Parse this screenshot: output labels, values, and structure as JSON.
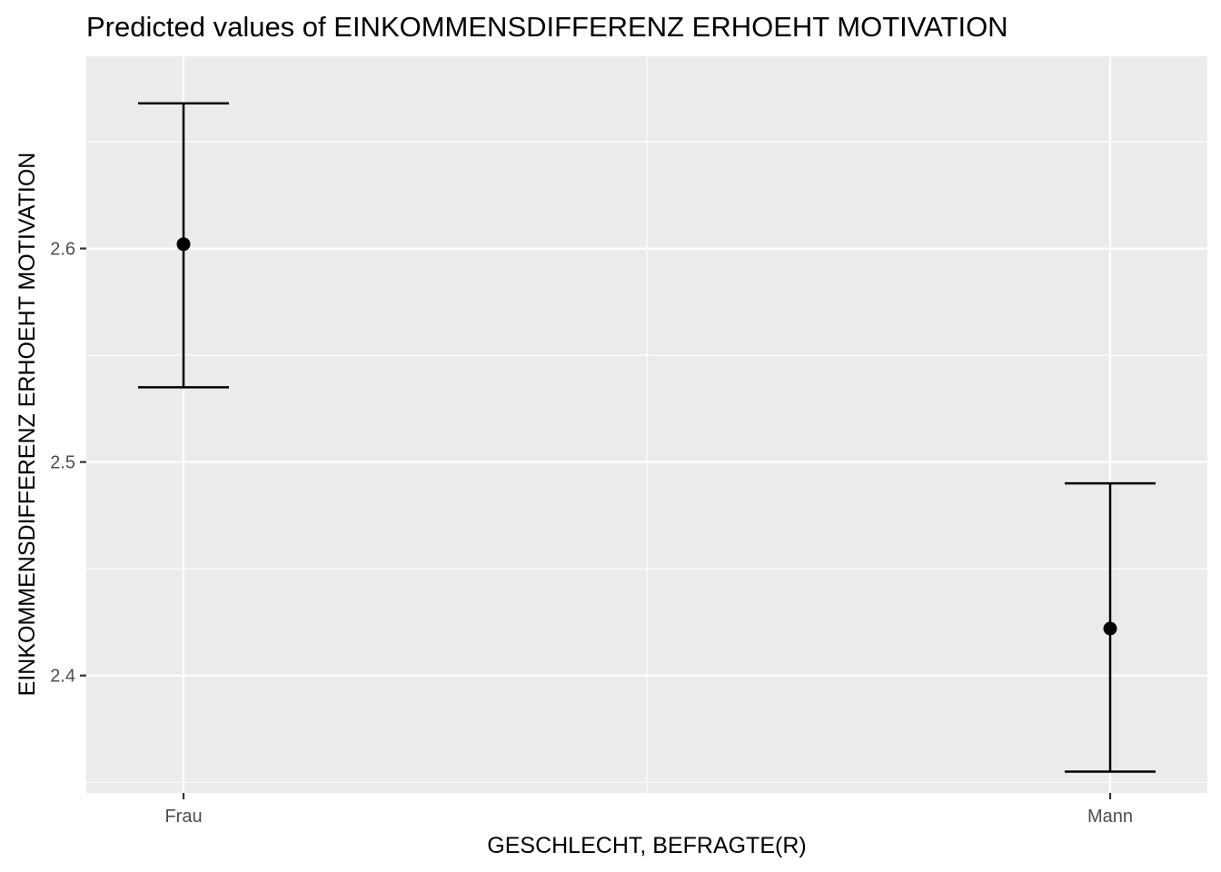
{
  "chart_data": {
    "type": "scatter",
    "title": "Predicted values of EINKOMMENSDIFFERENZ ERHOEHT MOTIVATION",
    "xlabel": "GESCHLECHT, BEFRAGTE(R)",
    "ylabel": "EINKOMMENSDIFFERENZ ERHOEHT MOTIVATION",
    "categories": [
      "Frau",
      "Mann"
    ],
    "values": [
      2.602,
      2.422
    ],
    "ci_low": [
      2.535,
      2.355
    ],
    "ci_high": [
      2.668,
      2.49
    ],
    "ylim": [
      2.345,
      2.69
    ],
    "yticks": [
      2.4,
      2.5,
      2.6
    ],
    "ytick_labels": [
      "2.4",
      "2.5",
      "2.6"
    ],
    "grid": true,
    "colors": {
      "panel_background": "#ebebeb",
      "grid": "#ffffff",
      "marks": "#000000",
      "tick_text": "#4d4d4d"
    }
  }
}
